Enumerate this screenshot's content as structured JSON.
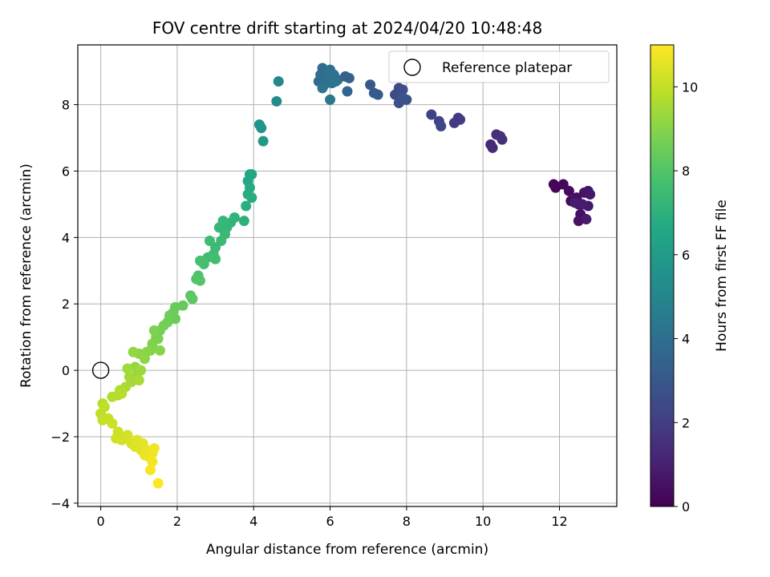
{
  "chart_data": {
    "type": "scatter",
    "title": "FOV centre drift starting at 2024/04/20 10:48:48",
    "xlabel": "Angular distance from reference (arcmin)",
    "ylabel": "Rotation from reference (arcmin)",
    "xlim": [
      -0.6,
      13.5
    ],
    "ylim": [
      -4.1,
      9.8
    ],
    "xticks": [
      0,
      2,
      4,
      6,
      8,
      10,
      12
    ],
    "yticks": [
      -4,
      -2,
      0,
      2,
      4,
      6,
      8
    ],
    "xtick_labels": [
      "0",
      "2",
      "4",
      "6",
      "8",
      "10",
      "12"
    ],
    "ytick_labels": [
      "−4",
      "−2",
      "0",
      "2",
      "4",
      "6",
      "8"
    ],
    "grid": true,
    "legend": {
      "position": "top-right",
      "entries": [
        {
          "label": "Reference platepar",
          "marker": "open-circle"
        }
      ]
    },
    "reference_point": {
      "x": 0,
      "y": 0
    },
    "colorbar": {
      "label": "Hours from first FF file",
      "colormap": "viridis",
      "range": [
        0,
        11
      ],
      "ticks": [
        0,
        2,
        4,
        6,
        8,
        10
      ],
      "tick_labels": [
        "0",
        "2",
        "4",
        "6",
        "8",
        "10"
      ]
    },
    "points": [
      {
        "x": 11.85,
        "y": 5.6,
        "t": 0.1
      },
      {
        "x": 11.9,
        "y": 5.5,
        "t": 0.15
      },
      {
        "x": 12.1,
        "y": 5.6,
        "t": 0.2
      },
      {
        "x": 12.25,
        "y": 5.4,
        "t": 0.3
      },
      {
        "x": 12.3,
        "y": 5.1,
        "t": 0.35
      },
      {
        "x": 12.45,
        "y": 5.2,
        "t": 0.4
      },
      {
        "x": 12.5,
        "y": 5.0,
        "t": 0.45
      },
      {
        "x": 12.55,
        "y": 4.7,
        "t": 0.5
      },
      {
        "x": 12.5,
        "y": 4.5,
        "t": 0.55
      },
      {
        "x": 12.65,
        "y": 5.35,
        "t": 0.6
      },
      {
        "x": 12.75,
        "y": 5.4,
        "t": 0.65
      },
      {
        "x": 12.8,
        "y": 5.3,
        "t": 0.7
      },
      {
        "x": 12.75,
        "y": 4.95,
        "t": 0.75
      },
      {
        "x": 12.7,
        "y": 4.55,
        "t": 0.8
      },
      {
        "x": 12.6,
        "y": 5.0,
        "t": 0.85
      },
      {
        "x": 12.4,
        "y": 5.05,
        "t": 0.9
      },
      {
        "x": 10.2,
        "y": 6.8,
        "t": 1.2
      },
      {
        "x": 10.25,
        "y": 6.7,
        "t": 1.3
      },
      {
        "x": 10.35,
        "y": 7.1,
        "t": 1.4
      },
      {
        "x": 10.5,
        "y": 6.95,
        "t": 1.5
      },
      {
        "x": 10.45,
        "y": 7.05,
        "t": 1.55
      },
      {
        "x": 9.35,
        "y": 7.6,
        "t": 1.8
      },
      {
        "x": 9.25,
        "y": 7.45,
        "t": 1.85
      },
      {
        "x": 9.4,
        "y": 7.55,
        "t": 1.9
      },
      {
        "x": 8.65,
        "y": 7.7,
        "t": 2.1
      },
      {
        "x": 8.85,
        "y": 7.5,
        "t": 2.15
      },
      {
        "x": 8.9,
        "y": 7.35,
        "t": 2.2
      },
      {
        "x": 7.7,
        "y": 8.3,
        "t": 2.5
      },
      {
        "x": 7.8,
        "y": 8.5,
        "t": 2.55
      },
      {
        "x": 7.9,
        "y": 8.45,
        "t": 2.6
      },
      {
        "x": 7.8,
        "y": 8.05,
        "t": 2.65
      },
      {
        "x": 8.0,
        "y": 8.15,
        "t": 2.7
      },
      {
        "x": 7.9,
        "y": 8.2,
        "t": 2.75
      },
      {
        "x": 7.05,
        "y": 8.6,
        "t": 3.0
      },
      {
        "x": 7.15,
        "y": 8.35,
        "t": 3.05
      },
      {
        "x": 7.25,
        "y": 8.3,
        "t": 3.1
      },
      {
        "x": 6.4,
        "y": 8.85,
        "t": 3.4
      },
      {
        "x": 6.5,
        "y": 8.8,
        "t": 3.45
      },
      {
        "x": 6.45,
        "y": 8.4,
        "t": 3.5
      },
      {
        "x": 6.2,
        "y": 8.75,
        "t": 3.55
      },
      {
        "x": 5.7,
        "y": 8.7,
        "t": 3.8
      },
      {
        "x": 5.75,
        "y": 8.9,
        "t": 3.85
      },
      {
        "x": 5.8,
        "y": 9.1,
        "t": 3.9
      },
      {
        "x": 5.85,
        "y": 8.6,
        "t": 3.95
      },
      {
        "x": 5.9,
        "y": 8.8,
        "t": 4.0
      },
      {
        "x": 5.95,
        "y": 8.95,
        "t": 4.05
      },
      {
        "x": 6.0,
        "y": 9.05,
        "t": 4.1
      },
      {
        "x": 6.05,
        "y": 8.65,
        "t": 4.15
      },
      {
        "x": 6.1,
        "y": 8.9,
        "t": 4.2
      },
      {
        "x": 6.15,
        "y": 8.7,
        "t": 4.25
      },
      {
        "x": 5.8,
        "y": 8.5,
        "t": 4.3
      },
      {
        "x": 6.0,
        "y": 8.15,
        "t": 4.35
      },
      {
        "x": 4.65,
        "y": 8.7,
        "t": 5.0
      },
      {
        "x": 4.6,
        "y": 8.1,
        "t": 5.2
      },
      {
        "x": 4.15,
        "y": 7.4,
        "t": 5.6
      },
      {
        "x": 4.2,
        "y": 7.3,
        "t": 5.7
      },
      {
        "x": 4.25,
        "y": 6.9,
        "t": 5.9
      },
      {
        "x": 3.9,
        "y": 5.9,
        "t": 6.5
      },
      {
        "x": 3.95,
        "y": 5.9,
        "t": 6.55
      },
      {
        "x": 3.85,
        "y": 5.7,
        "t": 6.6
      },
      {
        "x": 3.9,
        "y": 5.5,
        "t": 6.7
      },
      {
        "x": 3.85,
        "y": 5.3,
        "t": 6.75
      },
      {
        "x": 3.95,
        "y": 5.2,
        "t": 6.8
      },
      {
        "x": 3.8,
        "y": 4.95,
        "t": 6.9
      },
      {
        "x": 3.75,
        "y": 4.5,
        "t": 7.0
      },
      {
        "x": 3.5,
        "y": 4.6,
        "t": 7.1
      },
      {
        "x": 3.4,
        "y": 4.45,
        "t": 7.15
      },
      {
        "x": 3.3,
        "y": 4.3,
        "t": 7.2
      },
      {
        "x": 3.2,
        "y": 4.5,
        "t": 7.25
      },
      {
        "x": 3.1,
        "y": 4.3,
        "t": 7.3
      },
      {
        "x": 3.25,
        "y": 4.1,
        "t": 7.35
      },
      {
        "x": 3.15,
        "y": 3.9,
        "t": 7.4
      },
      {
        "x": 3.0,
        "y": 3.7,
        "t": 7.45
      },
      {
        "x": 2.85,
        "y": 3.9,
        "t": 7.5
      },
      {
        "x": 2.95,
        "y": 3.5,
        "t": 7.55
      },
      {
        "x": 3.0,
        "y": 3.35,
        "t": 7.6
      },
      {
        "x": 2.8,
        "y": 3.4,
        "t": 7.65
      },
      {
        "x": 2.7,
        "y": 3.2,
        "t": 7.7
      },
      {
        "x": 2.6,
        "y": 3.3,
        "t": 7.75
      },
      {
        "x": 2.55,
        "y": 2.85,
        "t": 7.9
      },
      {
        "x": 2.5,
        "y": 2.75,
        "t": 7.95
      },
      {
        "x": 2.6,
        "y": 2.7,
        "t": 8.0
      },
      {
        "x": 2.35,
        "y": 2.25,
        "t": 8.15
      },
      {
        "x": 2.4,
        "y": 2.15,
        "t": 8.2
      },
      {
        "x": 2.15,
        "y": 1.95,
        "t": 8.35
      },
      {
        "x": 1.95,
        "y": 1.9,
        "t": 8.4
      },
      {
        "x": 1.9,
        "y": 1.75,
        "t": 8.45
      },
      {
        "x": 1.95,
        "y": 1.55,
        "t": 8.5
      },
      {
        "x": 1.8,
        "y": 1.65,
        "t": 8.55
      },
      {
        "x": 1.75,
        "y": 1.45,
        "t": 8.6
      },
      {
        "x": 1.65,
        "y": 1.35,
        "t": 8.65
      },
      {
        "x": 1.55,
        "y": 1.2,
        "t": 8.7
      },
      {
        "x": 1.45,
        "y": 1.0,
        "t": 8.75
      },
      {
        "x": 1.5,
        "y": 0.95,
        "t": 8.8
      },
      {
        "x": 1.4,
        "y": 1.2,
        "t": 8.85
      },
      {
        "x": 1.35,
        "y": 0.8,
        "t": 8.9
      },
      {
        "x": 1.3,
        "y": 0.6,
        "t": 8.95
      },
      {
        "x": 1.55,
        "y": 0.6,
        "t": 9.0
      },
      {
        "x": 1.2,
        "y": 0.55,
        "t": 9.05
      },
      {
        "x": 1.15,
        "y": 0.35,
        "t": 9.1
      },
      {
        "x": 1.0,
        "y": 0.5,
        "t": 9.15
      },
      {
        "x": 0.85,
        "y": 0.55,
        "t": 9.2
      },
      {
        "x": 0.9,
        "y": 0.1,
        "t": 9.25
      },
      {
        "x": 0.95,
        "y": -0.1,
        "t": 9.3
      },
      {
        "x": 1.05,
        "y": 0.0,
        "t": 9.35
      },
      {
        "x": 0.7,
        "y": 0.05,
        "t": 9.4
      },
      {
        "x": 0.75,
        "y": -0.2,
        "t": 9.45
      },
      {
        "x": 0.8,
        "y": -0.35,
        "t": 9.5
      },
      {
        "x": 1.0,
        "y": -0.3,
        "t": 9.55
      },
      {
        "x": 0.65,
        "y": -0.5,
        "t": 9.6
      },
      {
        "x": 0.5,
        "y": -0.6,
        "t": 9.65
      },
      {
        "x": 0.45,
        "y": -0.75,
        "t": 9.7
      },
      {
        "x": 0.3,
        "y": -0.8,
        "t": 9.75
      },
      {
        "x": 0.55,
        "y": -0.7,
        "t": 9.8
      },
      {
        "x": 0.05,
        "y": -1.0,
        "t": 9.85
      },
      {
        "x": 0.1,
        "y": -1.1,
        "t": 9.9
      },
      {
        "x": 0.0,
        "y": -1.3,
        "t": 9.95
      },
      {
        "x": 0.05,
        "y": -1.5,
        "t": 10.0
      },
      {
        "x": 0.2,
        "y": -1.45,
        "t": 10.05
      },
      {
        "x": 0.3,
        "y": -1.6,
        "t": 10.1
      },
      {
        "x": 0.45,
        "y": -1.85,
        "t": 10.15
      },
      {
        "x": 0.4,
        "y": -2.05,
        "t": 10.2
      },
      {
        "x": 0.55,
        "y": -2.1,
        "t": 10.25
      },
      {
        "x": 0.7,
        "y": -1.95,
        "t": 10.3
      },
      {
        "x": 0.8,
        "y": -2.2,
        "t": 10.35
      },
      {
        "x": 0.9,
        "y": -2.3,
        "t": 10.4
      },
      {
        "x": 0.95,
        "y": -2.1,
        "t": 10.45
      },
      {
        "x": 1.05,
        "y": -2.4,
        "t": 10.5
      },
      {
        "x": 1.1,
        "y": -2.2,
        "t": 10.55
      },
      {
        "x": 1.15,
        "y": -2.55,
        "t": 10.6
      },
      {
        "x": 1.2,
        "y": -2.4,
        "t": 10.65
      },
      {
        "x": 1.25,
        "y": -2.6,
        "t": 10.7
      },
      {
        "x": 1.35,
        "y": -2.5,
        "t": 10.75
      },
      {
        "x": 1.4,
        "y": -2.35,
        "t": 10.8
      },
      {
        "x": 1.35,
        "y": -2.75,
        "t": 10.85
      },
      {
        "x": 1.3,
        "y": -3.0,
        "t": 10.9
      },
      {
        "x": 1.5,
        "y": -3.4,
        "t": 11.0
      }
    ]
  }
}
